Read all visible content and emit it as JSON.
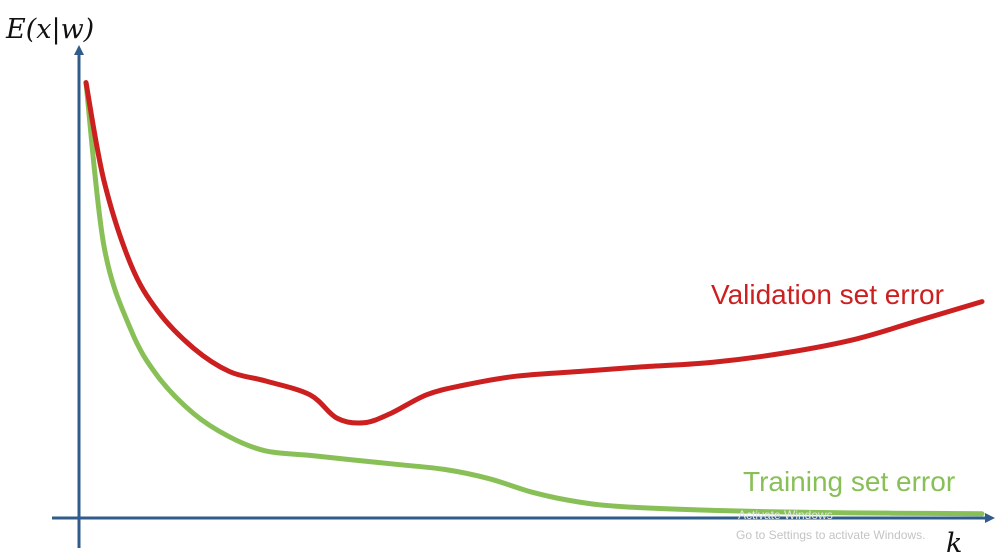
{
  "chart_data": {
    "type": "line",
    "xlabel": "k",
    "ylabel": "E(x|w)",
    "grid": false,
    "legend": "none (series labeled inline)",
    "series": [
      {
        "name": "Validation set error",
        "color": "#cc1f1f",
        "x": [
          0,
          0.02,
          0.05,
          0.08,
          0.12,
          0.16,
          0.2,
          0.25,
          0.28,
          0.31,
          0.34,
          0.38,
          0.42,
          0.48,
          0.55,
          0.62,
          0.7,
          0.78,
          0.86,
          0.93,
          1.0
        ],
        "y": [
          0.93,
          0.72,
          0.54,
          0.44,
          0.36,
          0.31,
          0.29,
          0.26,
          0.21,
          0.2,
          0.22,
          0.26,
          0.28,
          0.3,
          0.31,
          0.32,
          0.33,
          0.35,
          0.38,
          0.42,
          0.46
        ]
      },
      {
        "name": "Training set error",
        "color": "#88c057",
        "x": [
          0,
          0.02,
          0.05,
          0.08,
          0.12,
          0.16,
          0.2,
          0.25,
          0.3,
          0.35,
          0.4,
          0.45,
          0.5,
          0.55,
          0.6,
          0.7,
          0.8,
          0.9,
          1.0
        ],
        "y": [
          0.93,
          0.58,
          0.4,
          0.3,
          0.22,
          0.17,
          0.14,
          0.13,
          0.12,
          0.11,
          0.1,
          0.08,
          0.05,
          0.03,
          0.02,
          0.012,
          0.008,
          0.006,
          0.005
        ]
      }
    ],
    "labels": {
      "validation": "Validation set error",
      "training": "Training set error"
    }
  },
  "watermark": {
    "line1": "Activate Windows",
    "line2": "Go to Settings to activate Windows."
  },
  "colors": {
    "axis": "#2f5c8a",
    "validation": "#cc1f1f",
    "training": "#88c057"
  }
}
